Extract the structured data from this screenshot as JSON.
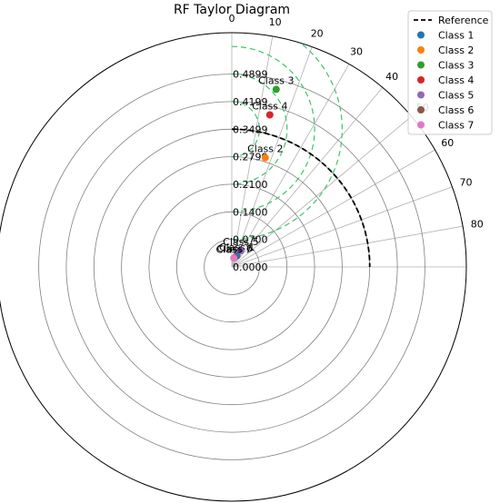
{
  "chart_data": {
    "type": "scatter",
    "title": "RF Taylor Diagram",
    "projection": "polar",
    "angular_ticks": [
      "0",
      "10",
      "20",
      "30",
      "40",
      "50",
      "60",
      "70",
      "80"
    ],
    "radial_ticks": [
      "0.0000",
      "0.0700",
      "0.1400",
      "0.2100",
      "0.2799",
      "0.3499",
      "0.4199",
      "0.4899"
    ],
    "radial_max": 0.595,
    "reference": {
      "name": "Reference",
      "std": 0.3499
    },
    "rms_contours": [
      0.07,
      0.14,
      0.21,
      0.28
    ],
    "series": [
      {
        "name": "Class 1",
        "std": 0.031,
        "angle_deg": 25,
        "color": "#1f77b4"
      },
      {
        "name": "Class 2",
        "std": 0.29,
        "angle_deg": 17,
        "color": "#ff7f0e"
      },
      {
        "name": "Class 3",
        "std": 0.465,
        "angle_deg": 14,
        "color": "#2ca02c"
      },
      {
        "name": "Class 4",
        "std": 0.398,
        "angle_deg": 14,
        "color": "#d62728"
      },
      {
        "name": "Class 5",
        "std": 0.047,
        "angle_deg": 29,
        "color": "#9467bd"
      },
      {
        "name": "Class 6",
        "std": 0.025,
        "angle_deg": 17,
        "color": "#8c564b"
      },
      {
        "name": "Class 7",
        "std": 0.023,
        "angle_deg": 13,
        "color": "#e377c2"
      }
    ],
    "legend_position": "top-right",
    "grid": true
  }
}
